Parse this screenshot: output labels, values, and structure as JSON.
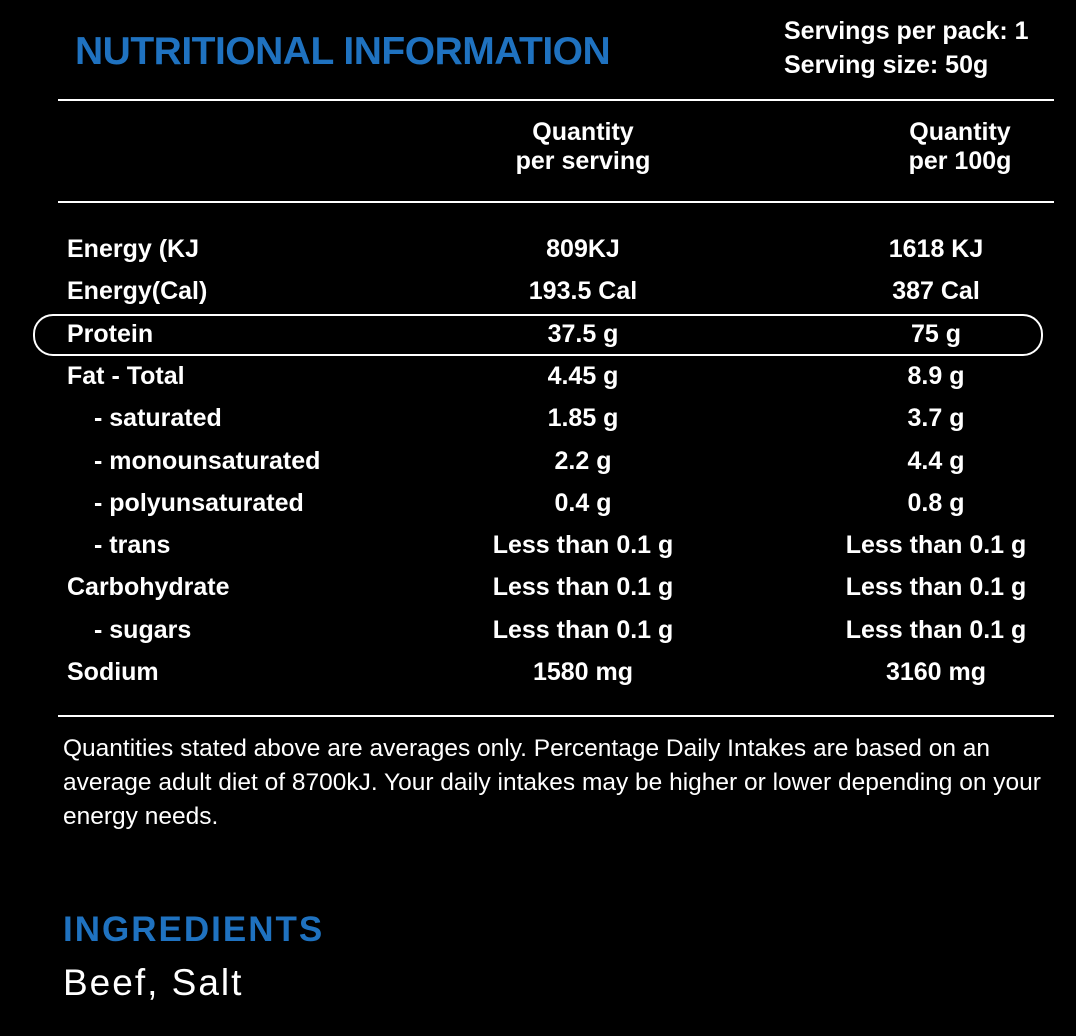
{
  "title": "NUTRITIONAL INFORMATION",
  "servings_per_pack": "Servings per pack: 1",
  "serving_size": "Serving size: 50g",
  "columns": [
    {
      "line1": "Quantity",
      "line2": "per serving"
    },
    {
      "line1": "Quantity",
      "line2": "per 100g"
    }
  ],
  "rows": [
    {
      "label": "Energy (KJ",
      "per_serving": "809KJ",
      "per_100g": "1618 KJ"
    },
    {
      "label": "Energy(Cal)",
      "per_serving": "193.5 Cal",
      "per_100g": "387 Cal"
    },
    {
      "label": "Protein",
      "per_serving": "37.5 g",
      "per_100g": "75 g"
    },
    {
      "label": "Fat - Total",
      "per_serving": "4.45 g",
      "per_100g": "8.9 g"
    },
    {
      "label": "- saturated",
      "per_serving": "1.85 g",
      "per_100g": "3.7 g"
    },
    {
      "label": "- monounsaturated",
      "per_serving": "2.2 g",
      "per_100g": "4.4 g"
    },
    {
      "label": "- polyunsaturated",
      "per_serving": "0.4 g",
      "per_100g": "0.8 g"
    },
    {
      "label": "- trans",
      "per_serving": "Less than 0.1 g",
      "per_100g": "Less than 0.1 g"
    },
    {
      "label": "Carbohydrate",
      "per_serving": "Less than 0.1 g",
      "per_100g": "Less than 0.1 g"
    },
    {
      "label": "- sugars",
      "per_serving": "Less than 0.1 g",
      "per_100g": "Less than 0.1 g"
    },
    {
      "label": "Sodium",
      "per_serving": "1580 mg",
      "per_100g": "3160 mg"
    }
  ],
  "footnote": "Quantities stated above are averages only. Percentage Daily Intakes are based on an average adult diet of 8700kJ. Your daily intakes may be higher or lower depending on your energy needs.",
  "ingredients_title": "INGREDIENTS",
  "ingredients": "Beef, Salt",
  "colors": {
    "accent": "#1f72c0",
    "background": "#000000",
    "text": "#ffffff"
  }
}
